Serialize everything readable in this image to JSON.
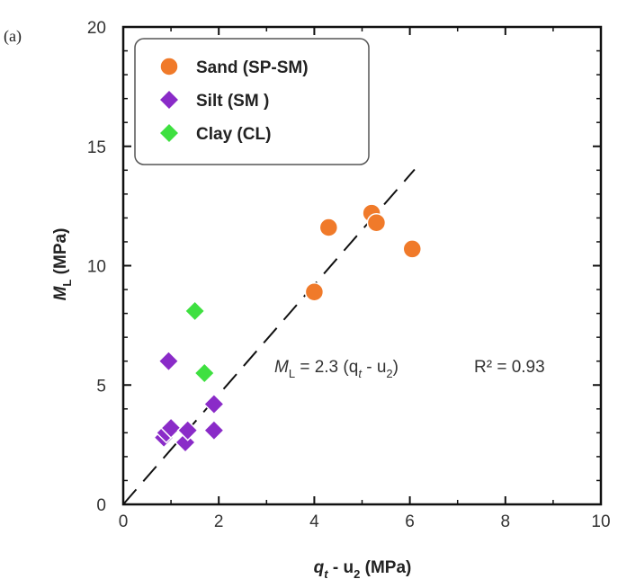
{
  "chart_data": {
    "type": "scatter",
    "panel_label": "(a)",
    "xlim": [
      0,
      10
    ],
    "ylim": [
      0,
      20
    ],
    "xticks": [
      "0",
      "2",
      "4",
      "6",
      "8",
      "10"
    ],
    "yticks": [
      "0",
      "5",
      "10",
      "15",
      "20"
    ],
    "xlabel": {
      "main": "q",
      "sub1": "t",
      "mid": " - u",
      "sub2": "2",
      "unit": " (MPa)"
    },
    "ylabel": {
      "main": "M",
      "sub": "L",
      "unit": " (MPa)"
    },
    "series": [
      {
        "name": "Sand (SP-SM)",
        "marker": "circle",
        "color": "#f07a2a",
        "points": [
          [
            4.0,
            8.9
          ],
          [
            4.3,
            11.6
          ],
          [
            5.2,
            12.2
          ],
          [
            5.3,
            11.8
          ],
          [
            6.05,
            10.7
          ]
        ]
      },
      {
        "name": "Silt (SM )",
        "marker": "diamond",
        "color": "#8a2bc8",
        "points": [
          [
            0.85,
            2.8
          ],
          [
            0.9,
            3.0
          ],
          [
            0.95,
            6.0
          ],
          [
            1.0,
            3.2
          ],
          [
            1.3,
            2.6
          ],
          [
            1.35,
            3.1
          ],
          [
            1.9,
            3.1
          ],
          [
            1.9,
            4.2
          ]
        ]
      },
      {
        "name": "Clay (CL)",
        "marker": "diamond",
        "color": "#3ee040",
        "points": [
          [
            1.5,
            8.1
          ],
          [
            1.7,
            5.5
          ]
        ]
      }
    ],
    "fit_line": {
      "slope": 2.3,
      "x_range": [
        0,
        6.1
      ]
    },
    "annotation": {
      "lhs_main": "M",
      "lhs_sub": "L",
      "formula_a": " = 2.3 (q",
      "formula_sub1": "t",
      "formula_b": " - u",
      "formula_sub2": "2",
      "formula_c": ")",
      "r2": "R² = 0.93"
    },
    "legend_placement": "top-left",
    "grid": false
  }
}
